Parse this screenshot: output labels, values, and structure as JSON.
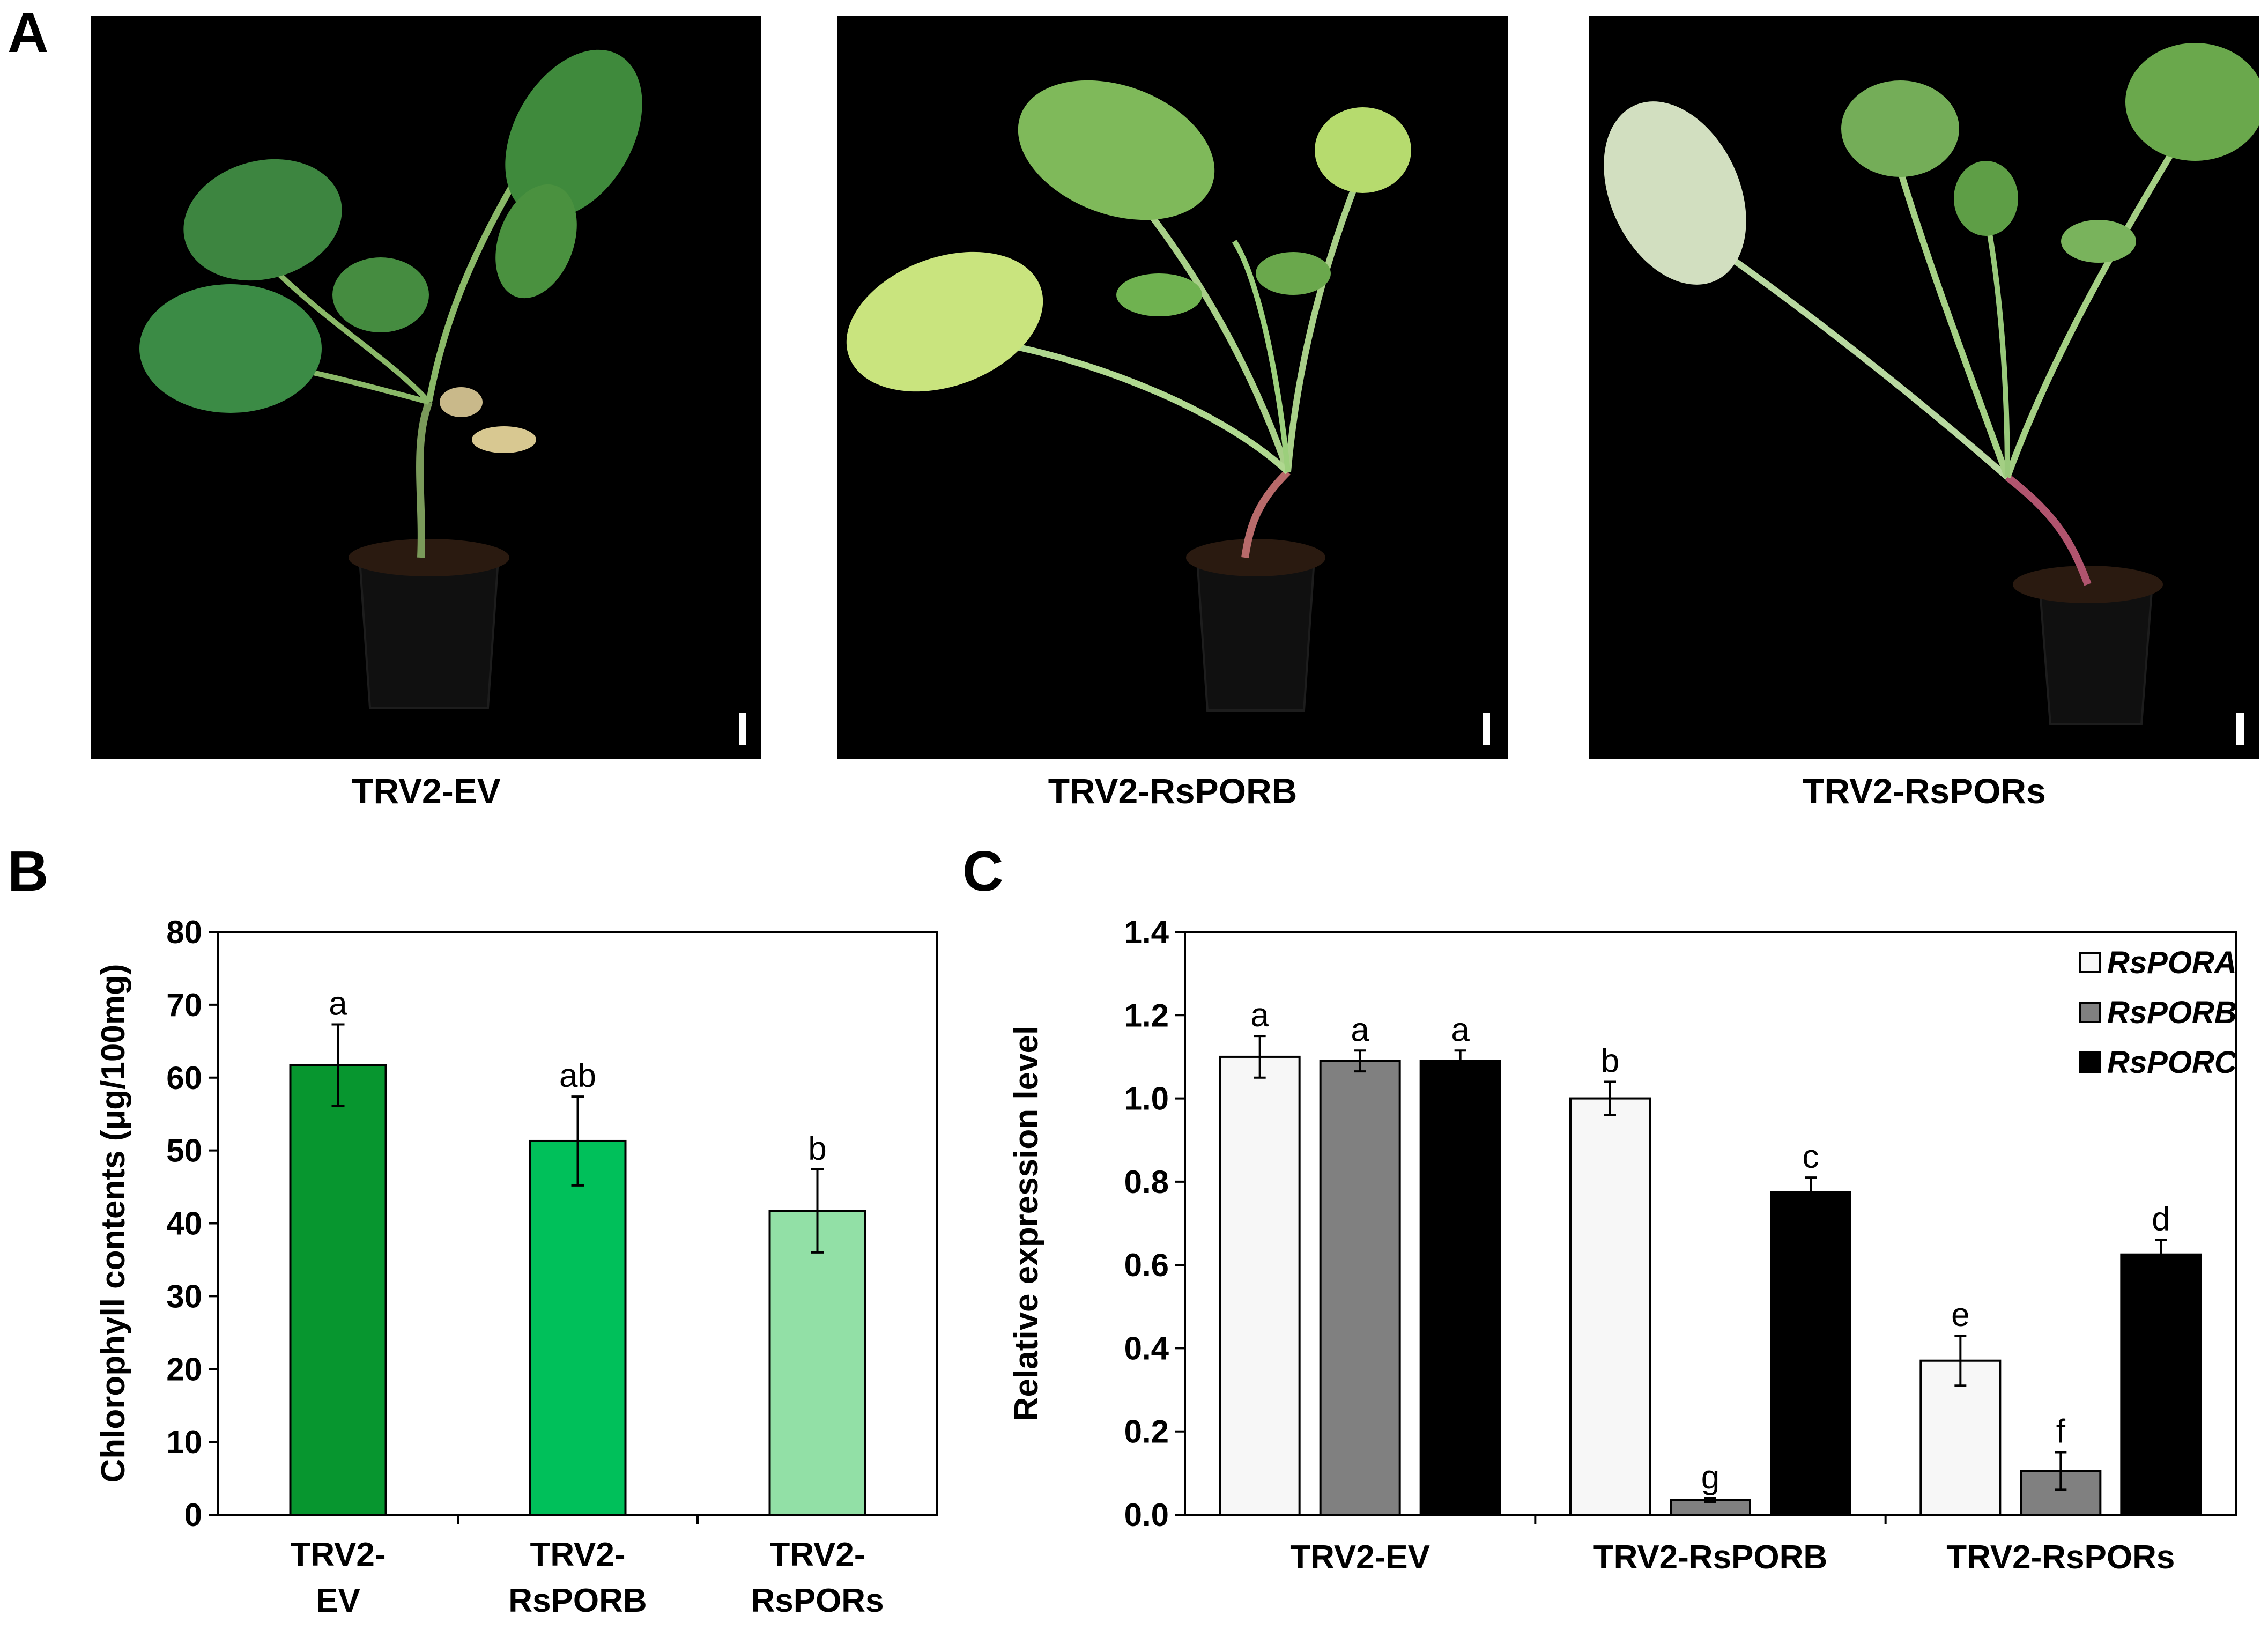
{
  "panels": {
    "a": {
      "letter": "A",
      "photos": [
        {
          "label": "TRV2-EV"
        },
        {
          "label": "TRV2-RsPORB"
        },
        {
          "label": "TRV2-RsPORs"
        }
      ]
    },
    "b": {
      "letter": "B"
    },
    "c": {
      "letter": "C"
    }
  },
  "chart_data": [
    {
      "type": "bar",
      "panel": "B",
      "categories": [
        [
          "TRV2-",
          "EV"
        ],
        [
          "TRV2-",
          "RsPORB"
        ],
        [
          "TRV2-",
          "RsPORs"
        ]
      ],
      "values": [
        61.7,
        51.3,
        41.7
      ],
      "errors": [
        5.6,
        6.1,
        5.7
      ],
      "significance": [
        "a",
        "ab",
        "b"
      ],
      "colors": [
        "#07962f",
        "#00c05a",
        "#92e0a6"
      ],
      "ylabel": "Chlorophyll contents  (μg/100mg)",
      "ylim": [
        0,
        80
      ],
      "yticks": [
        0,
        10,
        20,
        30,
        40,
        50,
        60,
        70,
        80
      ],
      "grid": false
    },
    {
      "type": "bar",
      "panel": "C",
      "categories": [
        "TRV2-EV",
        "TRV2-RsPORB",
        "TRV2-RsPORs"
      ],
      "series": [
        {
          "name": "RsPORA",
          "color": "#f7f7f7",
          "values": [
            1.1,
            1.0,
            0.37
          ],
          "errors": [
            0.05,
            0.04,
            0.06
          ],
          "significance": [
            "a",
            "b",
            "e"
          ]
        },
        {
          "name": "RsPORB",
          "color": "#808080",
          "values": [
            1.09,
            0.035,
            0.105
          ],
          "errors": [
            0.025,
            0.005,
            0.045
          ],
          "significance": [
            "a",
            "g",
            "f"
          ]
        },
        {
          "name": "RsPORC",
          "color": "#000000",
          "values": [
            1.09,
            0.775,
            0.625
          ],
          "errors": [
            0.025,
            0.035,
            0.035
          ],
          "significance": [
            "a",
            "c",
            "d"
          ]
        }
      ],
      "ylabel": "Relative expression level",
      "ylim": [
        0,
        1.4
      ],
      "yticks": [
        "0.0",
        "0.2",
        "0.4",
        "0.6",
        "0.8",
        "1.0",
        "1.2",
        "1.4"
      ],
      "legend": "top-right",
      "grid": false
    }
  ]
}
